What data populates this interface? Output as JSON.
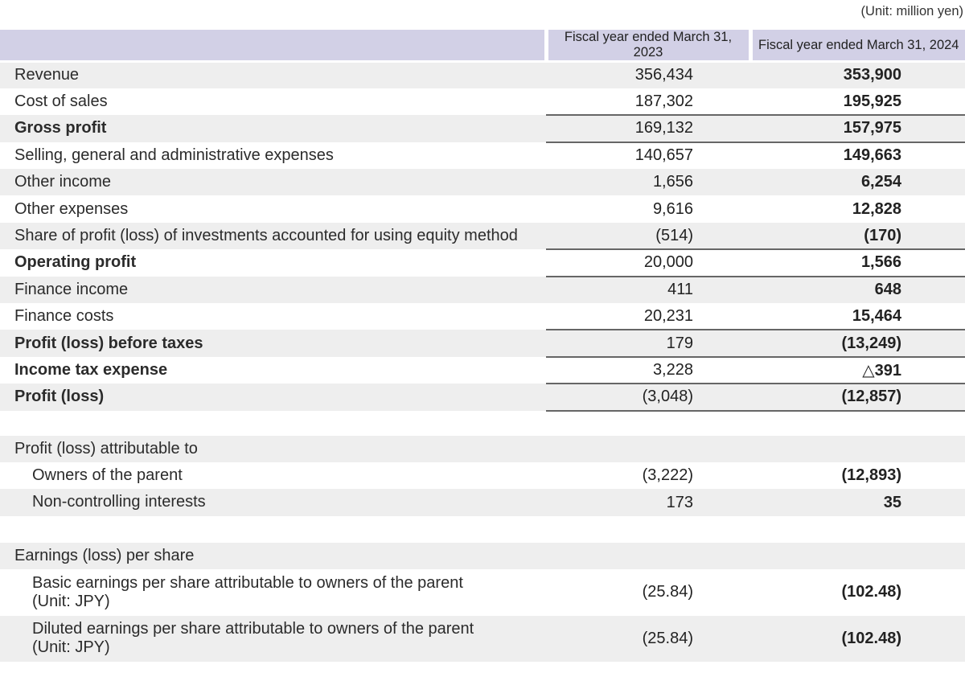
{
  "unit_note": "(Unit: million yen)",
  "colors": {
    "header_bg": "#d2d0e6",
    "stripe_bg": "#eeeeee",
    "rule": "#666666"
  },
  "table": {
    "col_headers": [
      "Fiscal year ended March 31, 2023",
      "Fiscal year ended March 31, 2024"
    ],
    "rows": [
      {
        "label": "Revenue",
        "fy2023": "356,434",
        "fy2024": "353,900"
      },
      {
        "label": "Cost of sales",
        "fy2023": "187,302",
        "fy2024": "195,925"
      },
      {
        "label": "Gross profit",
        "fy2023": "169,132",
        "fy2024": "157,975"
      },
      {
        "label": "Selling, general and administrative expenses",
        "fy2023": "140,657",
        "fy2024": "149,663"
      },
      {
        "label": "Other income",
        "fy2023": "1,656",
        "fy2024": "6,254"
      },
      {
        "label": "Other expenses",
        "fy2023": "9,616",
        "fy2024": "12,828"
      },
      {
        "label": "Share of profit (loss) of investments accounted for using equity method",
        "fy2023": "(514)",
        "fy2024": "(170)"
      },
      {
        "label": "Operating profit",
        "fy2023": "20,000",
        "fy2024": "1,566"
      },
      {
        "label": "Finance income",
        "fy2023": "411",
        "fy2024": "648"
      },
      {
        "label": "Finance costs",
        "fy2023": "20,231",
        "fy2024": "15,464"
      },
      {
        "label": "Profit (loss) before taxes",
        "fy2023": "179",
        "fy2024": "(13,249)"
      },
      {
        "label": "Income tax expense",
        "fy2023": "3,228",
        "fy2024": "△391"
      },
      {
        "label": "Profit (loss)",
        "fy2023": "(3,048)",
        "fy2024": "(12,857)"
      },
      {
        "label": "",
        "fy2023": "",
        "fy2024": ""
      },
      {
        "label": "Profit (loss) attributable to",
        "fy2023": "",
        "fy2024": ""
      },
      {
        "label": "Owners of the parent",
        "fy2023": "(3,222)",
        "fy2024": "(12,893)"
      },
      {
        "label": "Non-controlling interests",
        "fy2023": "173",
        "fy2024": "35"
      },
      {
        "label": "",
        "fy2023": "",
        "fy2024": ""
      },
      {
        "label": "Earnings (loss) per share",
        "fy2023": "",
        "fy2024": ""
      },
      {
        "label": "Basic earnings per share attributable to owners of the parent\n(Unit: JPY)",
        "fy2023": "(25.84)",
        "fy2024": "(102.48)"
      },
      {
        "label": "Diluted earnings per share attributable to owners of the parent\n(Unit: JPY)",
        "fy2023": "(25.84)",
        "fy2024": "(102.48)"
      }
    ]
  }
}
